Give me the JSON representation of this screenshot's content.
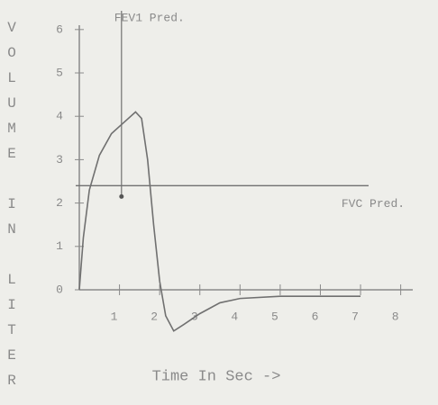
{
  "chart_data": {
    "type": "line",
    "y_label": "VOLUME IN LITER",
    "x_label": "Time In Sec ->",
    "x": [
      0,
      0.1,
      0.25,
      0.5,
      0.8,
      1.1,
      1.4,
      1.55,
      1.7,
      1.85,
      2.0,
      2.15,
      2.35,
      2.6,
      3.0,
      3.5,
      4.0,
      5.0,
      6.0,
      7.0
    ],
    "values": [
      0,
      1.2,
      2.3,
      3.1,
      3.6,
      3.85,
      4.1,
      3.95,
      3.0,
      1.5,
      0.2,
      -0.6,
      -0.95,
      -0.8,
      -0.55,
      -0.3,
      -0.2,
      -0.15,
      -0.15,
      -0.15
    ],
    "color": "#707070",
    "xlim": [
      0,
      8.3
    ],
    "ylim": [
      -1.1,
      6.1
    ],
    "xticks": [
      1,
      2,
      3,
      4,
      5,
      6,
      7,
      8
    ],
    "yticks": [
      0,
      1,
      2,
      3,
      4,
      5,
      6
    ],
    "fvc_pred": {
      "label": "FVC Pred.",
      "value": 2.4,
      "x_end": 7.2
    },
    "fev1_pred": {
      "label": "FEV1 Pred.",
      "x": 1.05,
      "value": 2.15
    }
  }
}
